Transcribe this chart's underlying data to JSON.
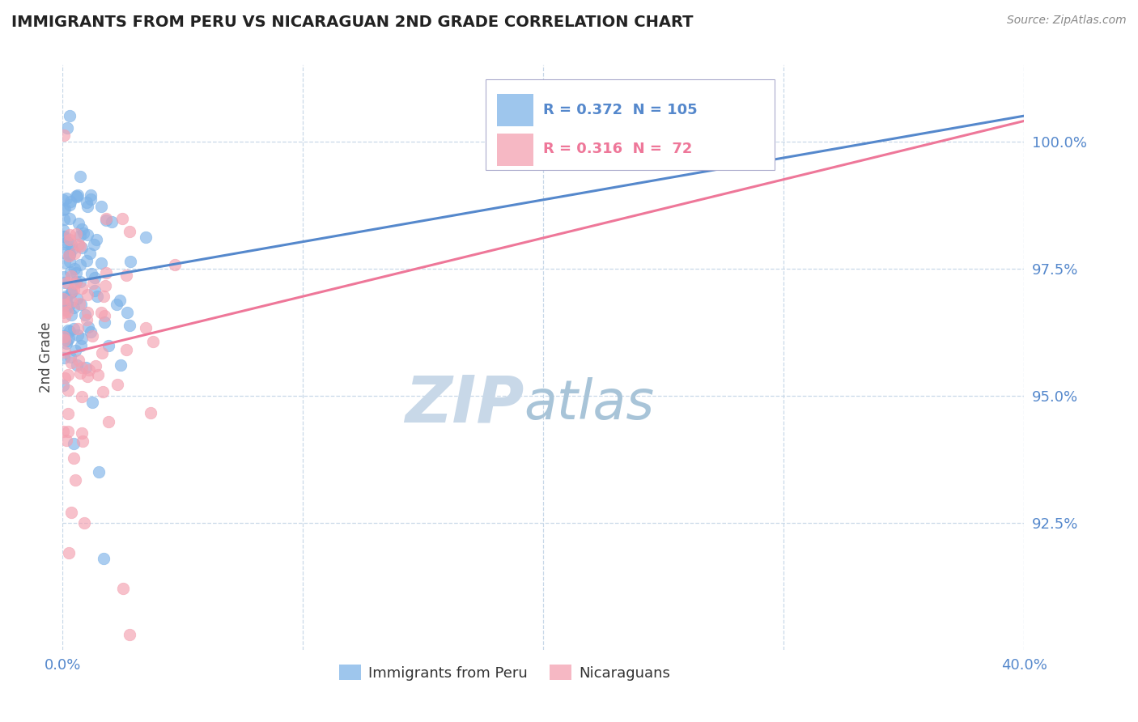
{
  "title": "IMMIGRANTS FROM PERU VS NICARAGUAN 2ND GRADE CORRELATION CHART",
  "source_text": "Source: ZipAtlas.com",
  "ylabel": "2nd Grade",
  "xlim": [
    0.0,
    40.0
  ],
  "ylim": [
    90.0,
    101.5
  ],
  "xtick_left": "0.0%",
  "xtick_right": "40.0%",
  "yticks": [
    92.5,
    95.0,
    97.5,
    100.0
  ],
  "yticklabels": [
    "92.5%",
    "95.0%",
    "97.5%",
    "100.0%"
  ],
  "blue_color": "#7EB3E8",
  "pink_color": "#F4A0B0",
  "blue_line_color": "#5588CC",
  "pink_line_color": "#EE7799",
  "blue_R": 0.372,
  "pink_R": 0.316,
  "blue_N": 105,
  "pink_N": 72,
  "watermark_zip": "ZIP",
  "watermark_atlas": "atlas",
  "watermark_color_zip": "#C8D8E8",
  "watermark_color_atlas": "#A8C4D8",
  "legend_label_blue": "Immigrants from Peru",
  "legend_label_pink": "Nicaraguans",
  "blue_line_x0": 0.0,
  "blue_line_y0": 97.2,
  "blue_line_x1": 40.0,
  "blue_line_y1": 100.5,
  "pink_line_x0": 0.0,
  "pink_line_y0": 95.8,
  "pink_line_x1": 40.0,
  "pink_line_y1": 100.4,
  "grid_color": "#C8D8E8",
  "tick_color": "#5588CC",
  "title_color": "#222222",
  "source_color": "#888888",
  "ylabel_color": "#444444"
}
